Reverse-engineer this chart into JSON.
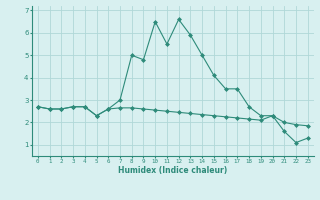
{
  "xlabel": "Humidex (Indice chaleur)",
  "x": [
    0,
    1,
    2,
    3,
    4,
    5,
    6,
    7,
    8,
    9,
    10,
    11,
    12,
    13,
    14,
    15,
    16,
    17,
    18,
    19,
    20,
    21,
    22,
    23
  ],
  "line1": [
    2.7,
    2.6,
    2.6,
    2.7,
    2.7,
    2.3,
    2.6,
    3.0,
    5.0,
    4.8,
    6.5,
    5.5,
    6.6,
    5.9,
    5.0,
    4.1,
    3.5,
    3.5,
    2.7,
    2.3,
    2.3,
    1.6,
    1.1,
    1.3
  ],
  "line2": [
    2.7,
    2.6,
    2.6,
    2.7,
    2.7,
    2.3,
    2.6,
    2.65,
    2.65,
    2.6,
    2.55,
    2.5,
    2.45,
    2.4,
    2.35,
    2.3,
    2.25,
    2.2,
    2.15,
    2.1,
    2.3,
    2.0,
    1.9,
    1.85
  ],
  "line_color": "#2e8b7a",
  "bg_color": "#d8f0f0",
  "grid_color": "#b0d8d8",
  "ylim": [
    0.5,
    7.2
  ],
  "yticks": [
    1,
    2,
    3,
    4,
    5,
    6,
    7
  ],
  "marker": "D",
  "markersize": 2.0,
  "linewidth": 0.8
}
